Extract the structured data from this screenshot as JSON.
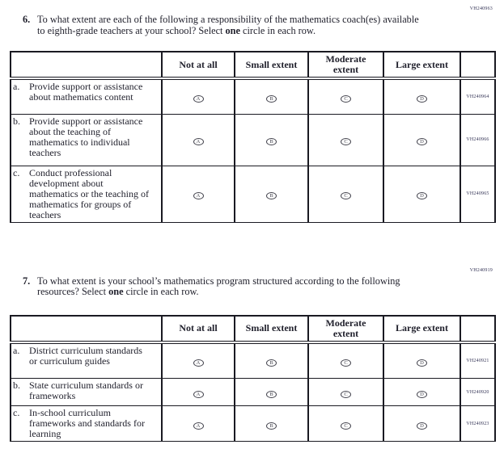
{
  "questions": [
    {
      "vh_code": "VH240963",
      "number": "6.",
      "text_before": "To what extent are each of the following a responsibility of the mathematics coach(es) available to eighth-grade teachers at your school? Select ",
      "bold_word": "one",
      "text_after": " circle in each row.",
      "table": {
        "col_headers": [
          "Not at all",
          "Small extent",
          "Moderate extent",
          "Large extent"
        ],
        "rows": [
          {
            "letter": "a.",
            "statement": "Provide support or assistance about mathematics content",
            "options": [
              "A",
              "B",
              "C",
              "D"
            ],
            "vh_code": "VH240964"
          },
          {
            "letter": "b.",
            "statement": "Provide support or assistance about the teaching of mathematics to individual teachers",
            "options": [
              "A",
              "B",
              "C",
              "D"
            ],
            "vh_code": "VH240966"
          },
          {
            "letter": "c.",
            "statement": "Conduct professional development about mathematics or the teaching of mathematics for groups of teachers",
            "options": [
              "A",
              "B",
              "C",
              "D"
            ],
            "vh_code": "VH240965"
          }
        ]
      }
    },
    {
      "vh_code": "VH240919",
      "number": "7.",
      "text_before": "To what extent is your school’s mathematics program structured according to the following resources? Select ",
      "bold_word": "one",
      "text_after": " circle in each row.",
      "table": {
        "col_headers": [
          "Not at all",
          "Small extent",
          "Moderate extent",
          "Large extent"
        ],
        "rows": [
          {
            "letter": "a.",
            "statement": "District curriculum standards or curriculum guides",
            "options": [
              "A",
              "B",
              "C",
              "D"
            ],
            "vh_code": "VH240921"
          },
          {
            "letter": "b.",
            "statement": "State curriculum standards or frameworks",
            "options": [
              "A",
              "B",
              "C",
              "D"
            ],
            "vh_code": "VH240920"
          },
          {
            "letter": "c.",
            "statement": "In-school curriculum frameworks and standards for learning",
            "options": [
              "A",
              "B",
              "C",
              "D"
            ],
            "vh_code": "VH240923"
          }
        ]
      }
    }
  ],
  "colors": {
    "text": "#1f1f2b",
    "code": "#333355",
    "border": "#1a1a22"
  }
}
